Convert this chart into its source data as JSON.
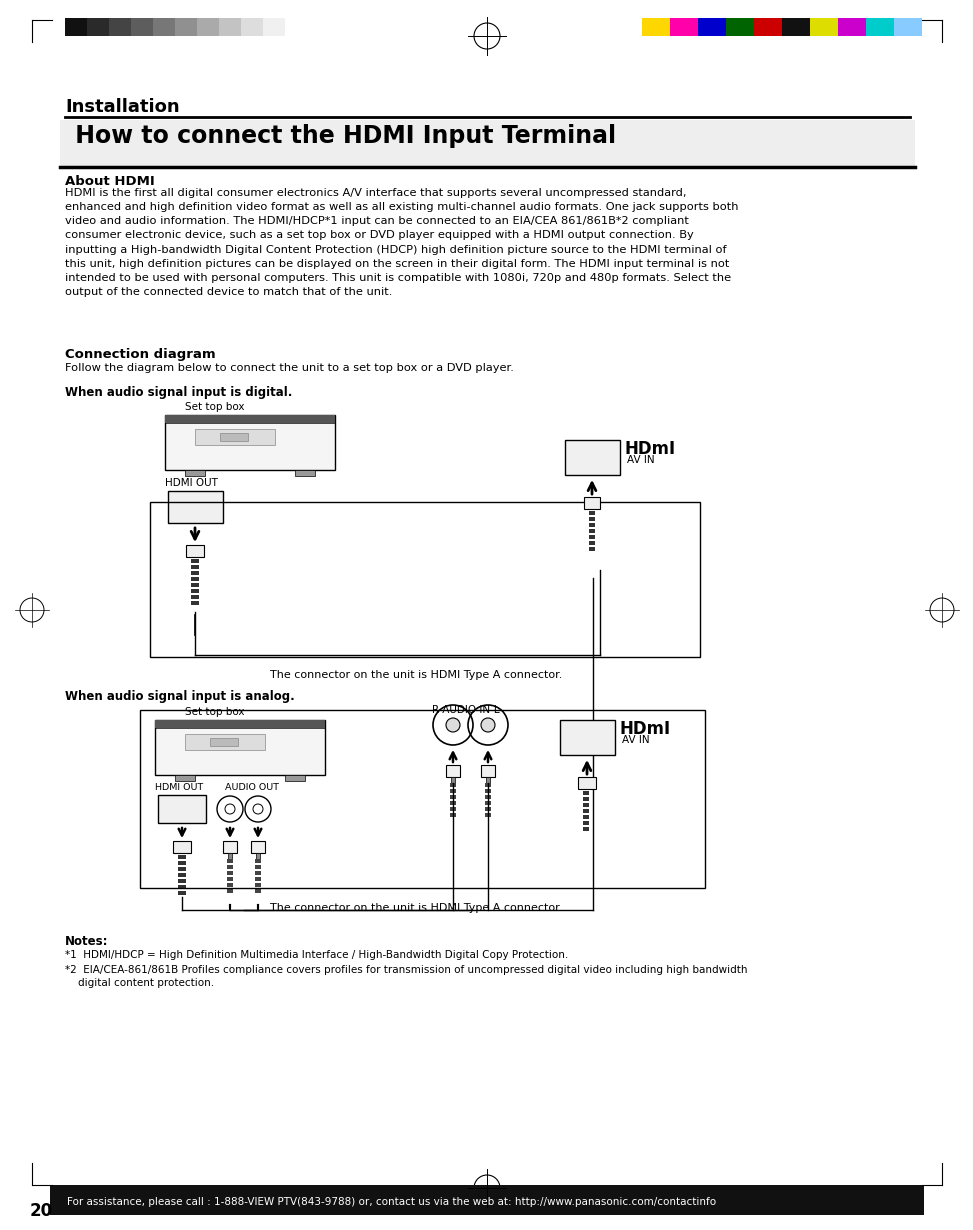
{
  "page_title": "Installation",
  "section_title": " How to connect the HDMI Input Terminal",
  "about_hdmi_title": "About HDMI",
  "about_hdmi_text": "HDMI is the first all digital consumer electronics A/V interface that supports several uncompressed standard,\nenhanced and high definition video format as well as all existing multi-channel audio formats. One jack supports both\nvideo and audio information. The HDMI/HDCP*1 input can be connected to an EIA/CEA 861/861B*2 compliant\nconsumer electronic device, such as a set top box or DVD player equipped with a HDMI output connection. By\ninputting a High-bandwidth Digital Content Protection (HDCP) high definition picture source to the HDMI terminal of\nthis unit, high definition pictures can be displayed on the screen in their digital form. The HDMI input terminal is not\nintended to be used with personal computers. This unit is compatible with 1080i, 720p and 480p formats. Select the\noutput of the connected device to match that of the unit.",
  "conn_diag_title": "Connection diagram",
  "conn_diag_text": "Follow the diagram below to connect the unit to a set top box or a DVD player.",
  "digital_label": "When audio signal input is digital.",
  "analog_label": "When audio signal input is analog.",
  "connector_note": "The connector on the unit is HDMI Type A connector.",
  "set_top_box": "Set top box",
  "hdmi_out": "HDMI OUT",
  "audio_out": "AUDIO OUT",
  "av_in": "AV IN",
  "r_audio_in_l": "R-AUDIO IN-L",
  "notes_title": "Notes:",
  "note1": "*1  HDMI/HDCP = High Definition Multimedia Interface / High-Bandwidth Digital Copy Protection.",
  "note2": "*2  EIA/CEA-861/861B Profiles compliance covers profiles for transmission of uncompressed digital video including high bandwidth\n    digital content protection.",
  "footer_text": "For assistance, please call : 1-888-VIEW PTV(843-9788) or, contact us via the web at: http://www.panasonic.com/contactinfo",
  "page_number": "20",
  "bg_color": "#ffffff",
  "text_color": "#000000",
  "footer_bg": "#1a1a1a",
  "footer_text_color": "#ffffff"
}
